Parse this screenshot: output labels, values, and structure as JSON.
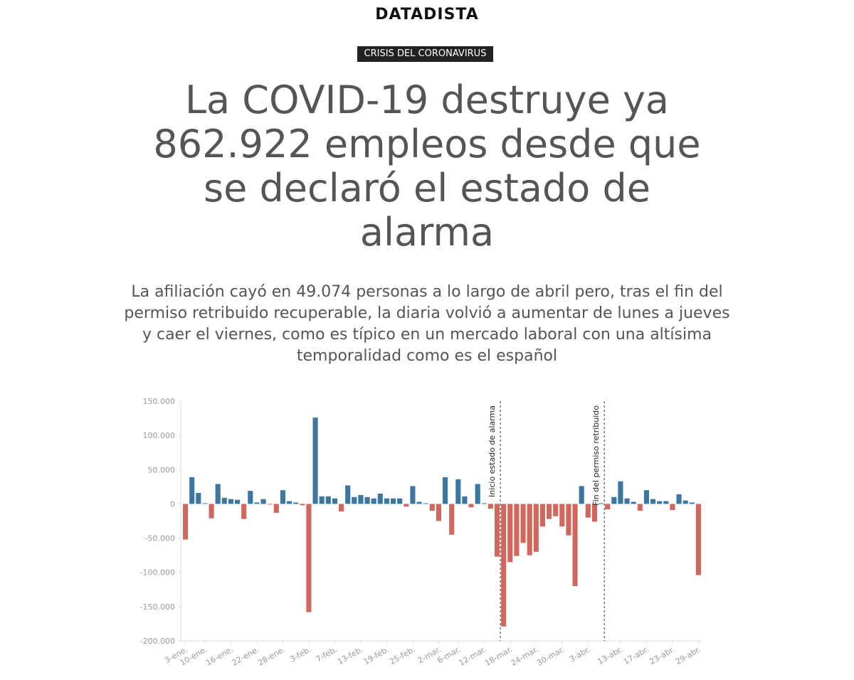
{
  "brand": "DATADISTA",
  "tag": "CRISIS DEL CORONAVIRUS",
  "headline": "La COVID-19 destruye ya 862.922 empleos desde que se declaró el estado de alarma",
  "subheadline": "La afiliación cayó en 49.074 personas a lo largo de abril pero, tras el fin del permiso retribuido recuperable, la diaria volvió a aumentar de lunes a jueves y caer el viernes, como es típico en un mercado laboral con una altísima temporalidad como es el español",
  "colors": {
    "positive": "#3b77a1",
    "negative": "#d2675d",
    "axis": "#999999",
    "grid": "#dddddd"
  },
  "chart_data": {
    "type": "bar",
    "title": "",
    "xlabel": "",
    "ylabel": "",
    "ylim": [
      -200000,
      150000
    ],
    "yticks": [
      150000,
      100000,
      50000,
      0,
      -50000,
      -100000,
      -150000,
      -200000
    ],
    "ytick_labels": [
      "150.000",
      "100.000",
      "50.000",
      "0",
      "-50.000",
      "-100.000",
      "-150.000",
      "-200.000"
    ],
    "xtick_labels": [
      "3-ene.",
      "10-ene.",
      "16-ene.",
      "22-ene.",
      "28-ene.",
      "3-feb.",
      "7-feb.",
      "13-feb.",
      "19-feb.",
      "25-feb.",
      "2-mar.",
      "6-mar.",
      "12-mar.",
      "18-mar.",
      "24-mar.",
      "30-mar.",
      "3-abr.",
      "13-abr.",
      "17-abr.",
      "23-abr.",
      "29-abr."
    ],
    "xtick_index": [
      0,
      3,
      7,
      11,
      15,
      19,
      23,
      27,
      31,
      35,
      39,
      42,
      46,
      50,
      54,
      58,
      62,
      67,
      71,
      75,
      79
    ],
    "values": [
      -52000,
      39000,
      16000,
      1000,
      -21000,
      29000,
      9000,
      7000,
      6000,
      -22000,
      19000,
      2000,
      7000,
      -1000,
      -13000,
      20000,
      4000,
      2000,
      -2000,
      -158000,
      126000,
      11000,
      11000,
      8000,
      -11000,
      27000,
      10000,
      13000,
      10000,
      8000,
      15000,
      8000,
      8000,
      8000,
      -4000,
      26000,
      3000,
      1000,
      -10000,
      -25000,
      39000,
      -45000,
      36000,
      11000,
      -5000,
      29000,
      1000,
      -7000,
      -77000,
      -179000,
      -85000,
      -76000,
      -57000,
      -75000,
      -70000,
      -33000,
      -22000,
      -18000,
      -33000,
      -46000,
      -120000,
      26000,
      -20000,
      -26000,
      1000,
      -8000,
      10000,
      33000,
      8000,
      3000,
      -10000,
      20000,
      7000,
      4000,
      4000,
      -9000,
      14000,
      5000,
      2000,
      -104000
    ],
    "annotations": [
      {
        "label": "Inicio estado de alarma",
        "after_index": 48
      },
      {
        "label": "Fin del permiso retribuido",
        "after_index": 64
      }
    ]
  }
}
